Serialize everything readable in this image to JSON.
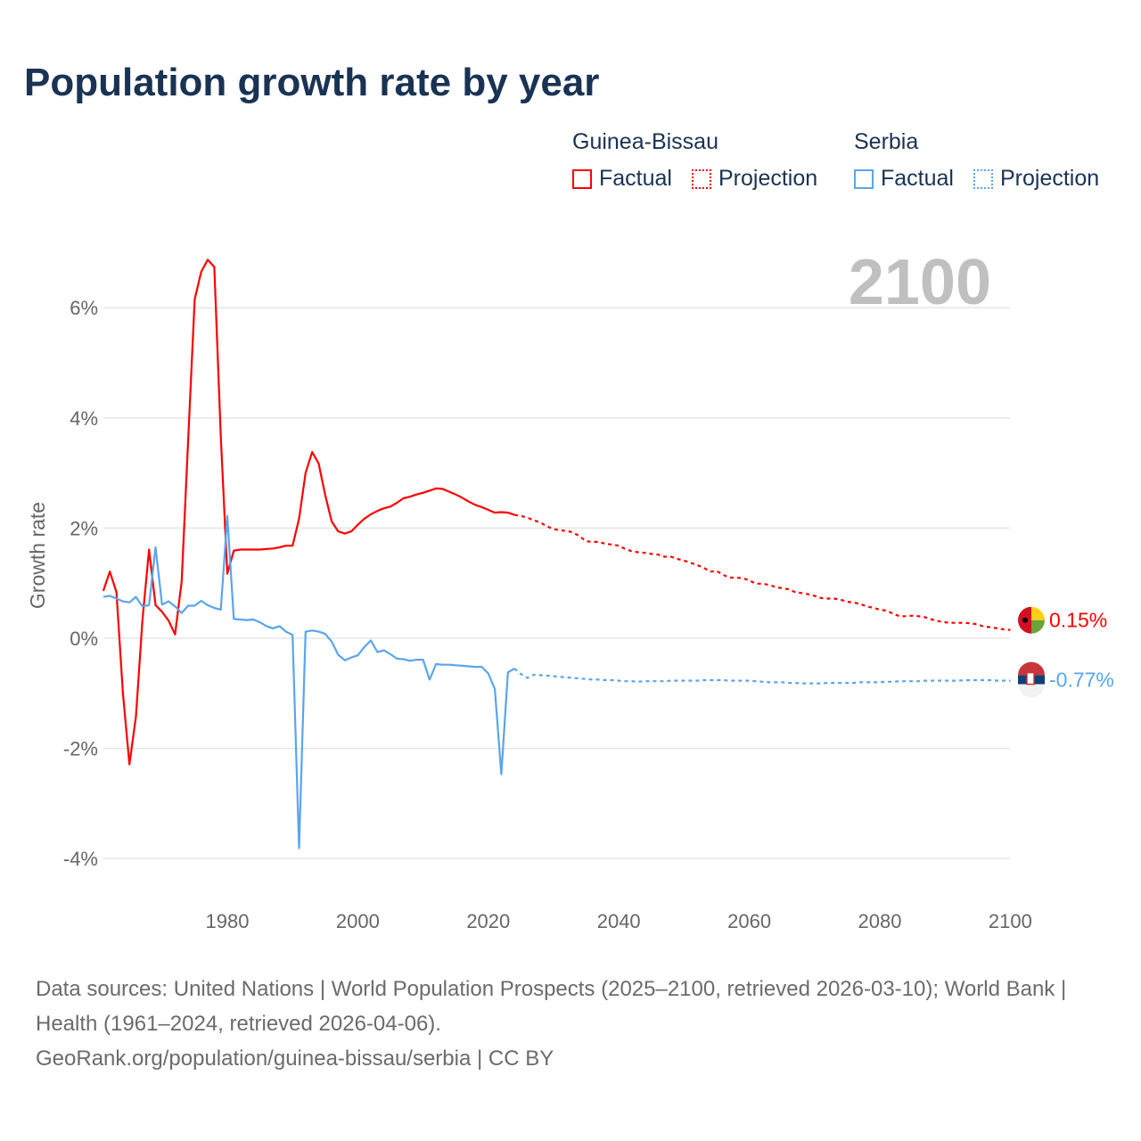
{
  "title": "Population growth rate by year",
  "legend": {
    "groups": [
      {
        "name": "Guinea-Bissau",
        "factual": "Factual",
        "projection": "Projection",
        "color": "#ff0000"
      },
      {
        "name": "Serbia",
        "factual": "Factual",
        "projection": "Projection",
        "color": "#5aa5ec"
      }
    ]
  },
  "current_year": "2100",
  "source": {
    "line1": "Data sources: United Nations | World Population Prospects (2025–2100, retrieved 2026-03-10); World Bank | Health (1961–2024, retrieved 2026-04-06).",
    "line2": "GeoRank.org/population/guinea-bissau/serbia | CC BY"
  },
  "chart_data": {
    "type": "line",
    "title": "Population growth rate by year",
    "xlabel": "",
    "ylabel": "Growth rate",
    "xlim": [
      1961,
      2100
    ],
    "ylim": [
      -4.8,
      7
    ],
    "x_ticks": [
      {
        "v": 1980,
        "label": "1980"
      },
      {
        "v": 2000,
        "label": "2000"
      },
      {
        "v": 2020,
        "label": "2020"
      },
      {
        "v": 2040,
        "label": "2040"
      },
      {
        "v": 2060,
        "label": "2060"
      },
      {
        "v": 2080,
        "label": "2080"
      },
      {
        "v": 2100,
        "label": "2100"
      }
    ],
    "y_ticks": [
      {
        "v": 6,
        "label": "6%"
      },
      {
        "v": 4,
        "label": "4%"
      },
      {
        "v": 2,
        "label": "2%"
      },
      {
        "v": 0,
        "label": "0%"
      },
      {
        "v": -2,
        "label": "-2%"
      },
      {
        "v": -4,
        "label": "-4%"
      }
    ],
    "grid": true,
    "series": [
      {
        "name": "Guinea-Bissau Factual",
        "color": "#ff0000",
        "dashed": false,
        "start": 1961,
        "values": [
          0.86,
          1.21,
          0.84,
          -1.0,
          -2.29,
          -1.42,
          0.33,
          1.61,
          0.6,
          0.48,
          0.32,
          0.07,
          1.03,
          3.6,
          6.15,
          6.65,
          6.87,
          6.74,
          3.66,
          1.17,
          1.59,
          1.61,
          1.61,
          1.61,
          1.61,
          1.62,
          1.63,
          1.65,
          1.68,
          1.68,
          2.17,
          3.0,
          3.38,
          3.17,
          2.6,
          2.12,
          1.94,
          1.9,
          1.94,
          2.06,
          2.17,
          2.25,
          2.31,
          2.36,
          2.39,
          2.46,
          2.54,
          2.57,
          2.61,
          2.64,
          2.68,
          2.72,
          2.71,
          2.66,
          2.61,
          2.55,
          2.48,
          2.42,
          2.38,
          2.33,
          2.28,
          2.29,
          2.28,
          2.24
        ]
      },
      {
        "name": "Guinea-Bissau Projection",
        "color": "#ff0000",
        "dashed": true,
        "start": 2024,
        "values": [
          2.24,
          2.22,
          2.19,
          2.14,
          2.1,
          2.03,
          1.98,
          1.96,
          1.95,
          1.92,
          1.85,
          1.76,
          1.75,
          1.75,
          1.71,
          1.7,
          1.68,
          1.62,
          1.58,
          1.56,
          1.55,
          1.53,
          1.52,
          1.48,
          1.48,
          1.44,
          1.41,
          1.37,
          1.33,
          1.28,
          1.21,
          1.22,
          1.15,
          1.1,
          1.1,
          1.09,
          1.05,
          0.99,
          0.99,
          0.97,
          0.93,
          0.91,
          0.89,
          0.84,
          0.82,
          0.8,
          0.77,
          0.73,
          0.72,
          0.72,
          0.7,
          0.66,
          0.65,
          0.62,
          0.58,
          0.55,
          0.52,
          0.5,
          0.45,
          0.4,
          0.4,
          0.41,
          0.4,
          0.38,
          0.34,
          0.31,
          0.29,
          0.28,
          0.28,
          0.28,
          0.27,
          0.25,
          0.21,
          0.2,
          0.18,
          0.16,
          0.15
        ]
      },
      {
        "name": "Serbia Factual",
        "color": "#5aa5ec",
        "dashed": false,
        "start": 1961,
        "values": [
          0.75,
          0.77,
          0.72,
          0.67,
          0.65,
          0.75,
          0.58,
          0.6,
          1.65,
          0.61,
          0.67,
          0.58,
          0.46,
          0.59,
          0.59,
          0.68,
          0.6,
          0.55,
          0.52,
          2.22,
          0.35,
          0.34,
          0.33,
          0.34,
          0.29,
          0.22,
          0.18,
          0.22,
          0.12,
          0.06,
          -3.81,
          0.12,
          0.14,
          0.12,
          0.08,
          -0.06,
          -0.3,
          -0.4,
          -0.35,
          -0.31,
          -0.16,
          -0.04,
          -0.25,
          -0.22,
          -0.29,
          -0.37,
          -0.38,
          -0.41,
          -0.39,
          -0.39,
          -0.75,
          -0.47,
          -0.48,
          -0.48,
          -0.49,
          -0.5,
          -0.51,
          -0.52,
          -0.52,
          -0.64,
          -0.92,
          -2.47,
          -0.62,
          -0.55
        ]
      },
      {
        "name": "Serbia Projection",
        "color": "#5aa5ec",
        "dashed": true,
        "start": 2024,
        "values": [
          -0.55,
          -0.65,
          -0.72,
          -0.66,
          -0.67,
          -0.68,
          -0.69,
          -0.7,
          -0.71,
          -0.72,
          -0.73,
          -0.74,
          -0.75,
          -0.75,
          -0.76,
          -0.76,
          -0.77,
          -0.78,
          -0.78,
          -0.79,
          -0.78,
          -0.78,
          -0.78,
          -0.78,
          -0.77,
          -0.77,
          -0.77,
          -0.77,
          -0.77,
          -0.76,
          -0.76,
          -0.76,
          -0.76,
          -0.77,
          -0.77,
          -0.77,
          -0.77,
          -0.78,
          -0.79,
          -0.8,
          -0.8,
          -0.8,
          -0.81,
          -0.81,
          -0.82,
          -0.82,
          -0.82,
          -0.82,
          -0.81,
          -0.81,
          -0.81,
          -0.81,
          -0.81,
          -0.8,
          -0.8,
          -0.8,
          -0.8,
          -0.79,
          -0.79,
          -0.78,
          -0.78,
          -0.78,
          -0.78,
          -0.77,
          -0.77,
          -0.77,
          -0.77,
          -0.77,
          -0.77,
          -0.76,
          -0.76,
          -0.76,
          -0.76,
          -0.76,
          -0.77,
          -0.77,
          -0.77
        ]
      }
    ],
    "end_labels": [
      {
        "country": "Guinea-Bissau",
        "value": 0.15,
        "label": "0.15%",
        "color": "#ff0000"
      },
      {
        "country": "Serbia",
        "value": -0.77,
        "label": "-0.77%",
        "color": "#5aa5ec"
      }
    ]
  }
}
